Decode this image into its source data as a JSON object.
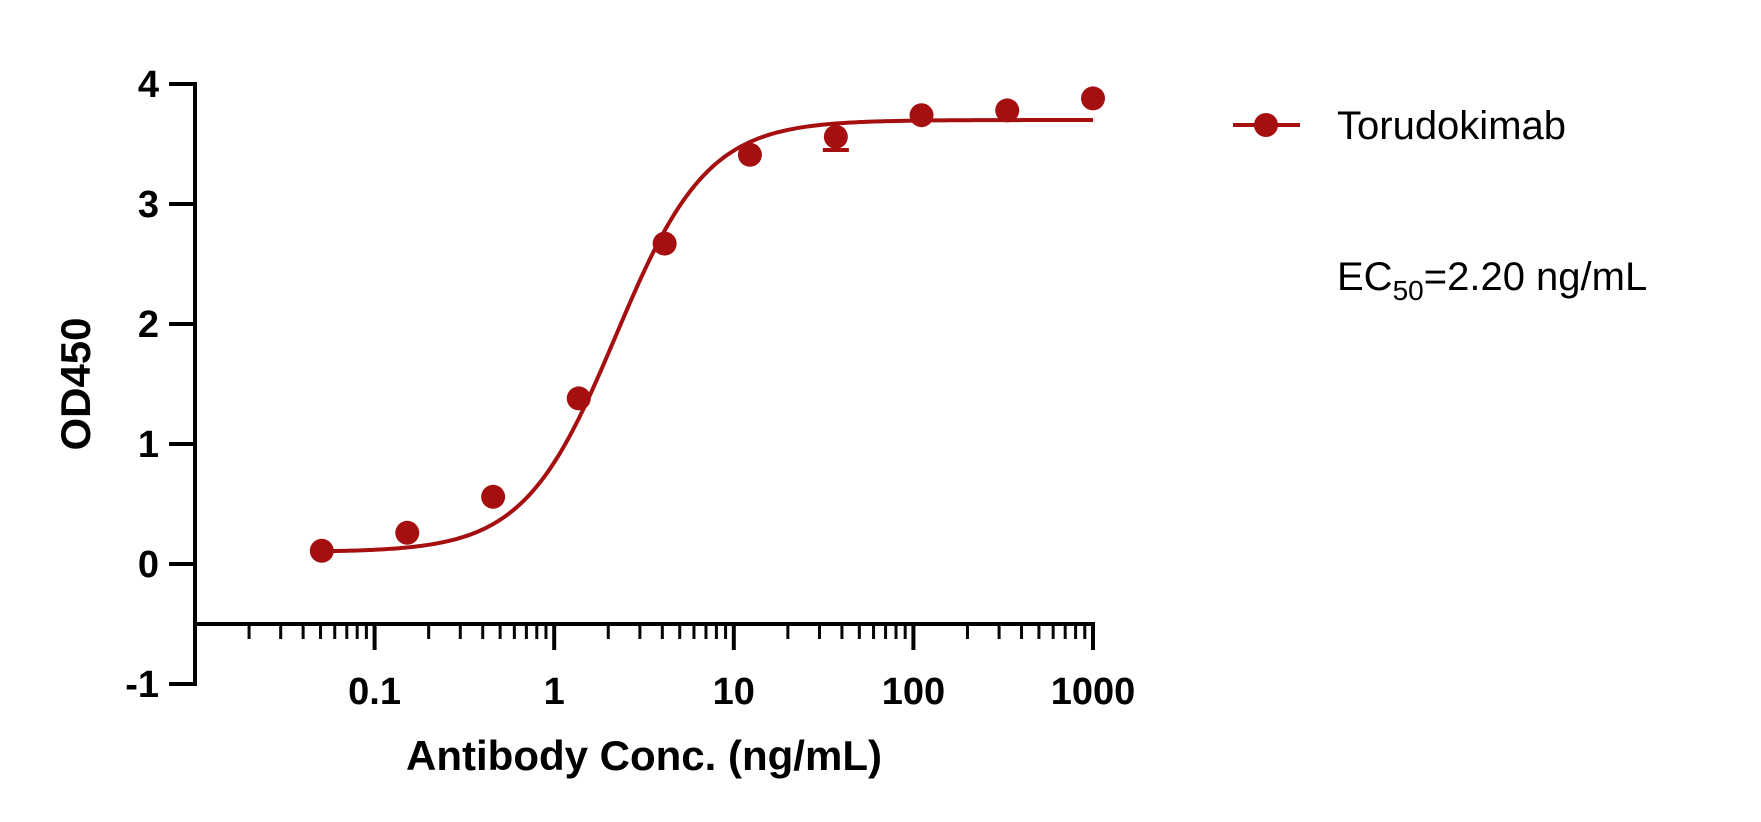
{
  "chart_data": {
    "type": "scatter",
    "title": "",
    "xlabel": "Antibody Conc. (ng/mL)",
    "ylabel": "OD450",
    "x_scale": "log",
    "xlim": [
      0.01,
      1000
    ],
    "ylim": [
      -1,
      4
    ],
    "x_ticks": [
      0.1,
      1,
      10,
      100,
      1000
    ],
    "x_tick_labels": [
      "0.1",
      "1",
      "10",
      "100",
      "1000"
    ],
    "y_ticks": [
      -1,
      0,
      1,
      2,
      3,
      4
    ],
    "y_tick_labels": [
      "-1",
      "0",
      "1",
      "2",
      "3",
      "4"
    ],
    "grid": false,
    "legend_position": "top-right",
    "series": [
      {
        "name": "Torudokimab",
        "color": "#a50f0f",
        "marker": "circle",
        "x": [
          0.0508,
          0.152,
          0.457,
          1.37,
          4.12,
          12.3,
          37.0,
          111,
          333,
          1000
        ],
        "y": [
          0.11,
          0.26,
          0.56,
          1.38,
          2.67,
          3.41,
          3.56,
          3.74,
          3.78,
          3.88
        ],
        "error": [
          0.02,
          0.02,
          0.02,
          0.03,
          0.03,
          0.03,
          0.11,
          0.03,
          0.03,
          0.03
        ],
        "fit": {
          "model": "4PL",
          "bottom": 0.1,
          "top": 3.7,
          "ec50": 2.2,
          "hill": 1.7
        }
      }
    ],
    "annotation": {
      "prefix": "EC",
      "subscript": "50",
      "suffix": "=2.20 ng/mL"
    }
  }
}
